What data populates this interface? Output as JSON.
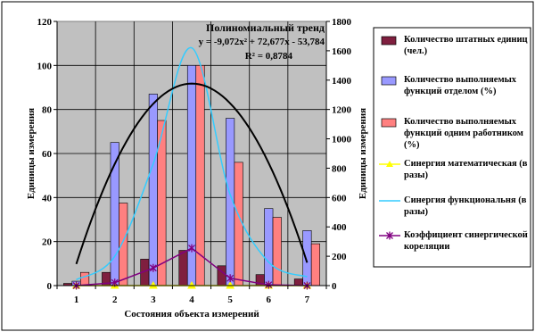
{
  "chart_data": {
    "type": "bar",
    "categories": [
      "1",
      "2",
      "3",
      "4",
      "5",
      "6",
      "7"
    ],
    "xlabel": "Состояния объекта измерений",
    "ylabel": "Единицы измерения",
    "ylabel_right": "Единицы измерения",
    "ylim": [
      0,
      120
    ],
    "ylim_right": [
      0,
      1800
    ],
    "yticks": [
      "0",
      "20",
      "40",
      "60",
      "80",
      "100",
      "120"
    ],
    "yticks_right": [
      "0",
      "200",
      "400",
      "600",
      "800",
      "1000",
      "1200",
      "1400",
      "1600",
      "1800"
    ],
    "grid": true,
    "legend_position": "right",
    "series": [
      {
        "name": "Количество штатных единиц (чел.)",
        "type": "bar",
        "axis": "left",
        "color": "#7f1f3f",
        "values": [
          1,
          6,
          12,
          16,
          9,
          5,
          3
        ]
      },
      {
        "name": "Количество выполняемых функций отделом (%)",
        "type": "bar",
        "axis": "left",
        "color": "#9999ff",
        "values": [
          2,
          65,
          87,
          100,
          76,
          35,
          25
        ]
      },
      {
        "name": "Количество выполняемых функций одним работником (%)",
        "type": "bar",
        "axis": "left",
        "color": "#ff8080",
        "values": [
          6,
          37.5,
          75,
          100,
          56,
          31,
          19
        ]
      },
      {
        "name": "Синергия математическая (в разы)",
        "type": "line",
        "axis": "right",
        "color": "#ffff00",
        "marker": "triangle",
        "values": [
          0,
          0,
          0,
          0,
          0,
          0,
          0
        ]
      },
      {
        "name": "Синергия функциональня (в разы)",
        "type": "line",
        "axis": "right",
        "color": "#33ccff",
        "marker": "none",
        "values": [
          40,
          200,
          830,
          1620,
          620,
          160,
          60
        ]
      },
      {
        "name": "Коэффициент синергической кореляции",
        "type": "line",
        "axis": "right",
        "color": "#800080",
        "marker": "star",
        "values": [
          0,
          20,
          120,
          255,
          50,
          5,
          0
        ]
      }
    ],
    "trend": {
      "title": "Полиномиальный тренд",
      "equation": "y = -9,072x² + 72,677x - 53,784",
      "r2": "R² = 0,8784",
      "color": "#000000",
      "coefficients": [
        -9.072,
        72.677,
        -53.784
      ]
    }
  }
}
